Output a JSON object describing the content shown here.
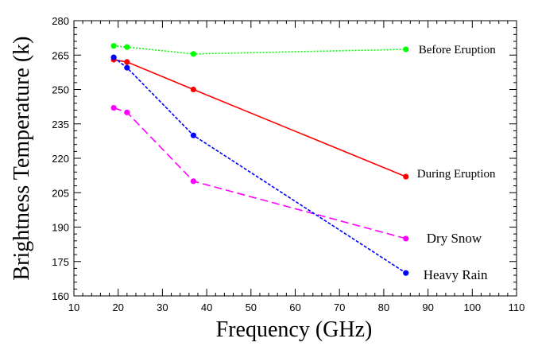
{
  "chart_data": {
    "type": "line",
    "title": "",
    "xlabel": "Frequency (GHz)",
    "ylabel": "Brightness Temperature (k)",
    "xlim": [
      10,
      110
    ],
    "ylim": [
      160,
      280
    ],
    "x_ticks": [
      10,
      20,
      30,
      40,
      50,
      60,
      70,
      80,
      90,
      100,
      110
    ],
    "y_ticks": [
      160,
      175,
      190,
      205,
      220,
      235,
      250,
      265,
      280
    ],
    "x": [
      19,
      22,
      37,
      85
    ],
    "grid": false,
    "legend": "labels at line ends (right side)",
    "series": [
      {
        "name": "Before Eruption",
        "color": "#00ff00",
        "dash": "dotted",
        "values": [
          269,
          268.5,
          265.5,
          267.5
        ]
      },
      {
        "name": "During Eruption",
        "color": "#ff0000",
        "dash": "solid",
        "values": [
          263,
          262,
          250,
          212
        ]
      },
      {
        "name": "Dry Snow",
        "color": "#ff00ff",
        "dash": "dashed",
        "values": [
          242,
          240,
          210,
          185
        ]
      },
      {
        "name": "Heavy Rain",
        "color": "#0000ff",
        "dash": "dash-dot",
        "values": [
          264,
          259.5,
          230,
          170
        ]
      }
    ]
  }
}
